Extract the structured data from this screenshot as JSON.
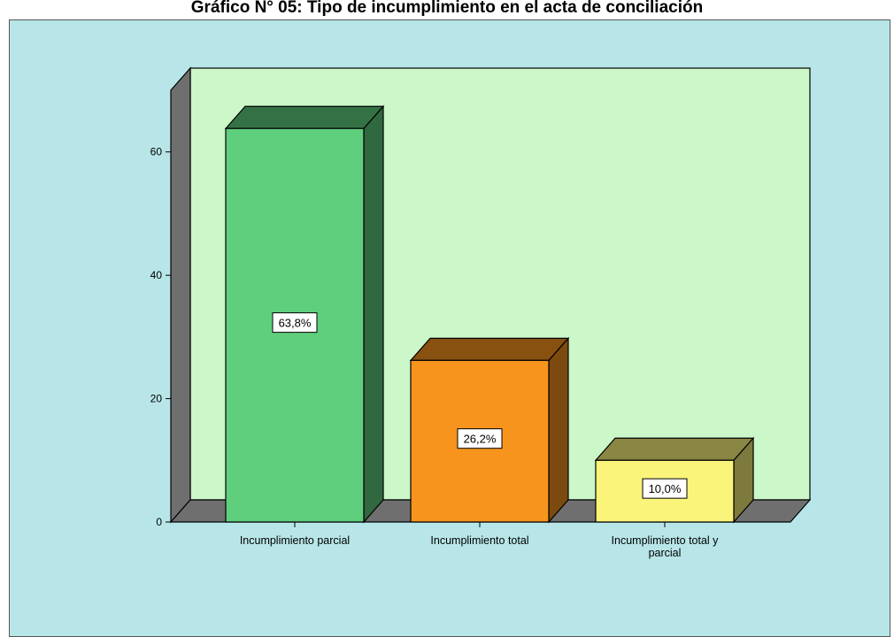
{
  "title": "Gráfico N° 05: Tipo de incumplimiento en el acta de conciliación",
  "chart_data": {
    "type": "bar",
    "title": "Gráfico N° 05: Tipo de incumplimiento en el acta de conciliación",
    "xlabel": "",
    "ylabel": "",
    "ylim": [
      0,
      70
    ],
    "yticks": [
      0,
      20,
      40,
      60
    ],
    "categories": [
      [
        "Incumplimiento parcial"
      ],
      [
        "Incumplimiento total"
      ],
      [
        "Incumplimiento total y",
        "parcial"
      ]
    ],
    "values": [
      63.8,
      26.2,
      10.0
    ],
    "data_labels": [
      "63,8%",
      "26,2%",
      "10,0%"
    ],
    "colors": [
      "#5fcf7d",
      "#f7941d",
      "#fbf47a"
    ],
    "wall_color": "#ccf7c9",
    "panel_color": "#b8e6e8",
    "side_wall_color": "#6f6f6f",
    "grid": false,
    "legend": "none",
    "three_d": true
  }
}
